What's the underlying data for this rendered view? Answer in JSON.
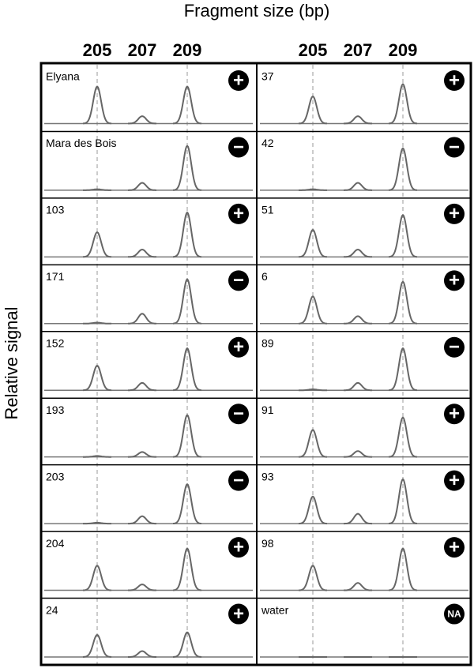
{
  "figure": {
    "title": "Fragment size (bp)",
    "y_label": "Relative signal",
    "fragment_sizes": [
      "205",
      "207",
      "209"
    ],
    "columns": [
      {
        "panels": [
          {
            "label": "Elyana",
            "call": "+",
            "peaks": [
              0.75,
              0.15,
              0.75
            ]
          },
          {
            "label": "Mara des Bois",
            "call": "−",
            "peaks": [
              0.02,
              0.15,
              0.9
            ]
          },
          {
            "label": "103",
            "call": "+",
            "peaks": [
              0.5,
              0.15,
              0.9
            ]
          },
          {
            "label": "171",
            "call": "−",
            "peaks": [
              0.02,
              0.2,
              0.9
            ]
          },
          {
            "label": "152",
            "call": "+",
            "peaks": [
              0.5,
              0.15,
              0.85
            ]
          },
          {
            "label": "193",
            "call": "−",
            "peaks": [
              0.02,
              0.1,
              0.85
            ]
          },
          {
            "label": "203",
            "call": "−",
            "peaks": [
              0.02,
              0.15,
              0.8
            ]
          },
          {
            "label": "204",
            "call": "+",
            "peaks": [
              0.5,
              0.12,
              0.85
            ]
          },
          {
            "label": "24",
            "call": "+",
            "peaks": [
              0.45,
              0.12,
              0.5
            ]
          }
        ]
      },
      {
        "panels": [
          {
            "label": "37",
            "call": "+",
            "peaks": [
              0.55,
              0.15,
              0.8
            ]
          },
          {
            "label": "42",
            "call": "−",
            "peaks": [
              0.02,
              0.15,
              0.85
            ]
          },
          {
            "label": "51",
            "call": "+",
            "peaks": [
              0.55,
              0.15,
              0.85
            ]
          },
          {
            "label": "6",
            "call": "+",
            "peaks": [
              0.55,
              0.15,
              0.85
            ]
          },
          {
            "label": "89",
            "call": "−",
            "peaks": [
              0.02,
              0.15,
              0.85
            ]
          },
          {
            "label": "91",
            "call": "+",
            "peaks": [
              0.55,
              0.12,
              0.8
            ]
          },
          {
            "label": "93",
            "call": "+",
            "peaks": [
              0.55,
              0.2,
              0.9
            ]
          },
          {
            "label": "98",
            "call": "+",
            "peaks": [
              0.5,
              0.15,
              0.85
            ]
          },
          {
            "label": "water",
            "call": "NA",
            "peaks": [
              0,
              0,
              0
            ]
          }
        ]
      }
    ]
  }
}
